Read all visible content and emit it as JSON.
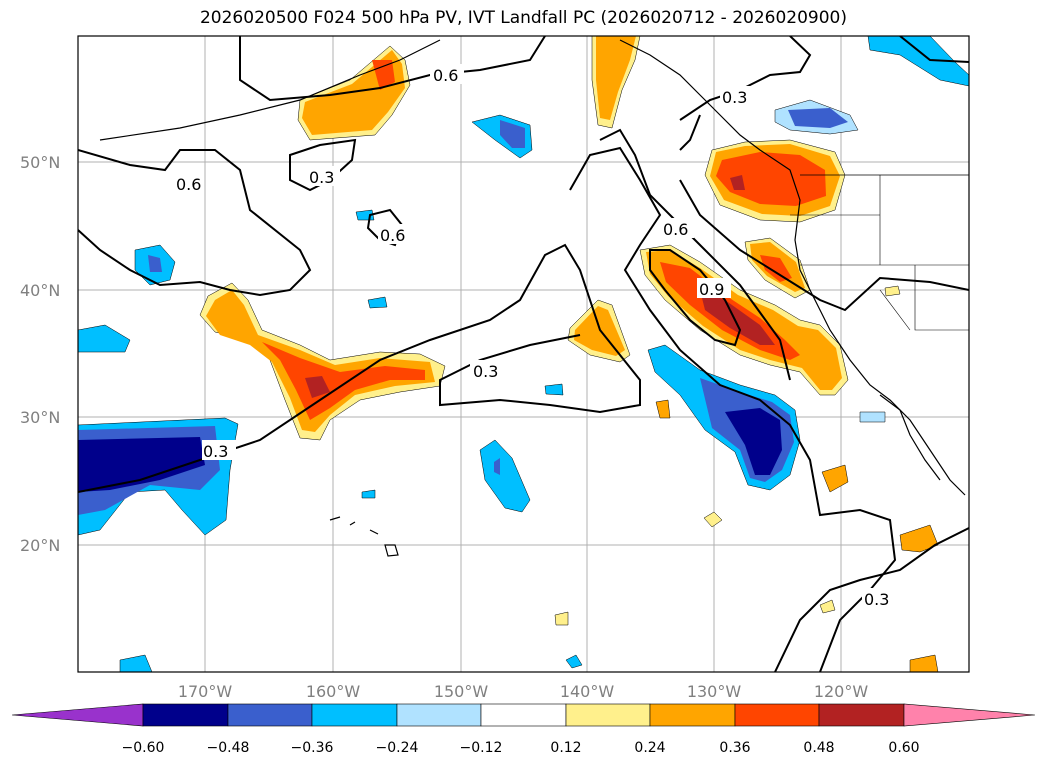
{
  "title": "2026020500 F024 500 hPa PV, IVT Landfall PC (2026020712 - 2026020900)",
  "lat_labels": [
    "50°N",
    "40°N",
    "30°N",
    "20°N"
  ],
  "lon_labels": [
    "170°W",
    "160°W",
    "150°W",
    "140°W",
    "130°W",
    "120°W"
  ],
  "contour_labels": [
    "0.6",
    "0.3",
    "0.6",
    "0.3",
    "0.6",
    "0.3",
    "0.6",
    "0.9",
    "0.3",
    "0.3"
  ],
  "colorbar": {
    "tick_labels": [
      "−0.60",
      "−0.48",
      "−0.36",
      "−0.24",
      "−0.12",
      "0.12",
      "0.24",
      "0.36",
      "0.48",
      "0.60"
    ],
    "colors": [
      "#9932cc",
      "#00008b",
      "#3a5fcd",
      "#00bfff",
      "#b0e2ff",
      "#ffffff",
      "#fff08c",
      "#ffa500",
      "#ff4500",
      "#b22222",
      "#ff82ab"
    ]
  },
  "fill_colors": {
    "yellow": "#fff08c",
    "orange": "#ffa500",
    "red": "#ff4500",
    "darkred": "#b22222",
    "lightblue": "#b0e2ff",
    "cyan": "#00bfff",
    "blue": "#3a5fcd",
    "navy": "#00008b"
  }
}
